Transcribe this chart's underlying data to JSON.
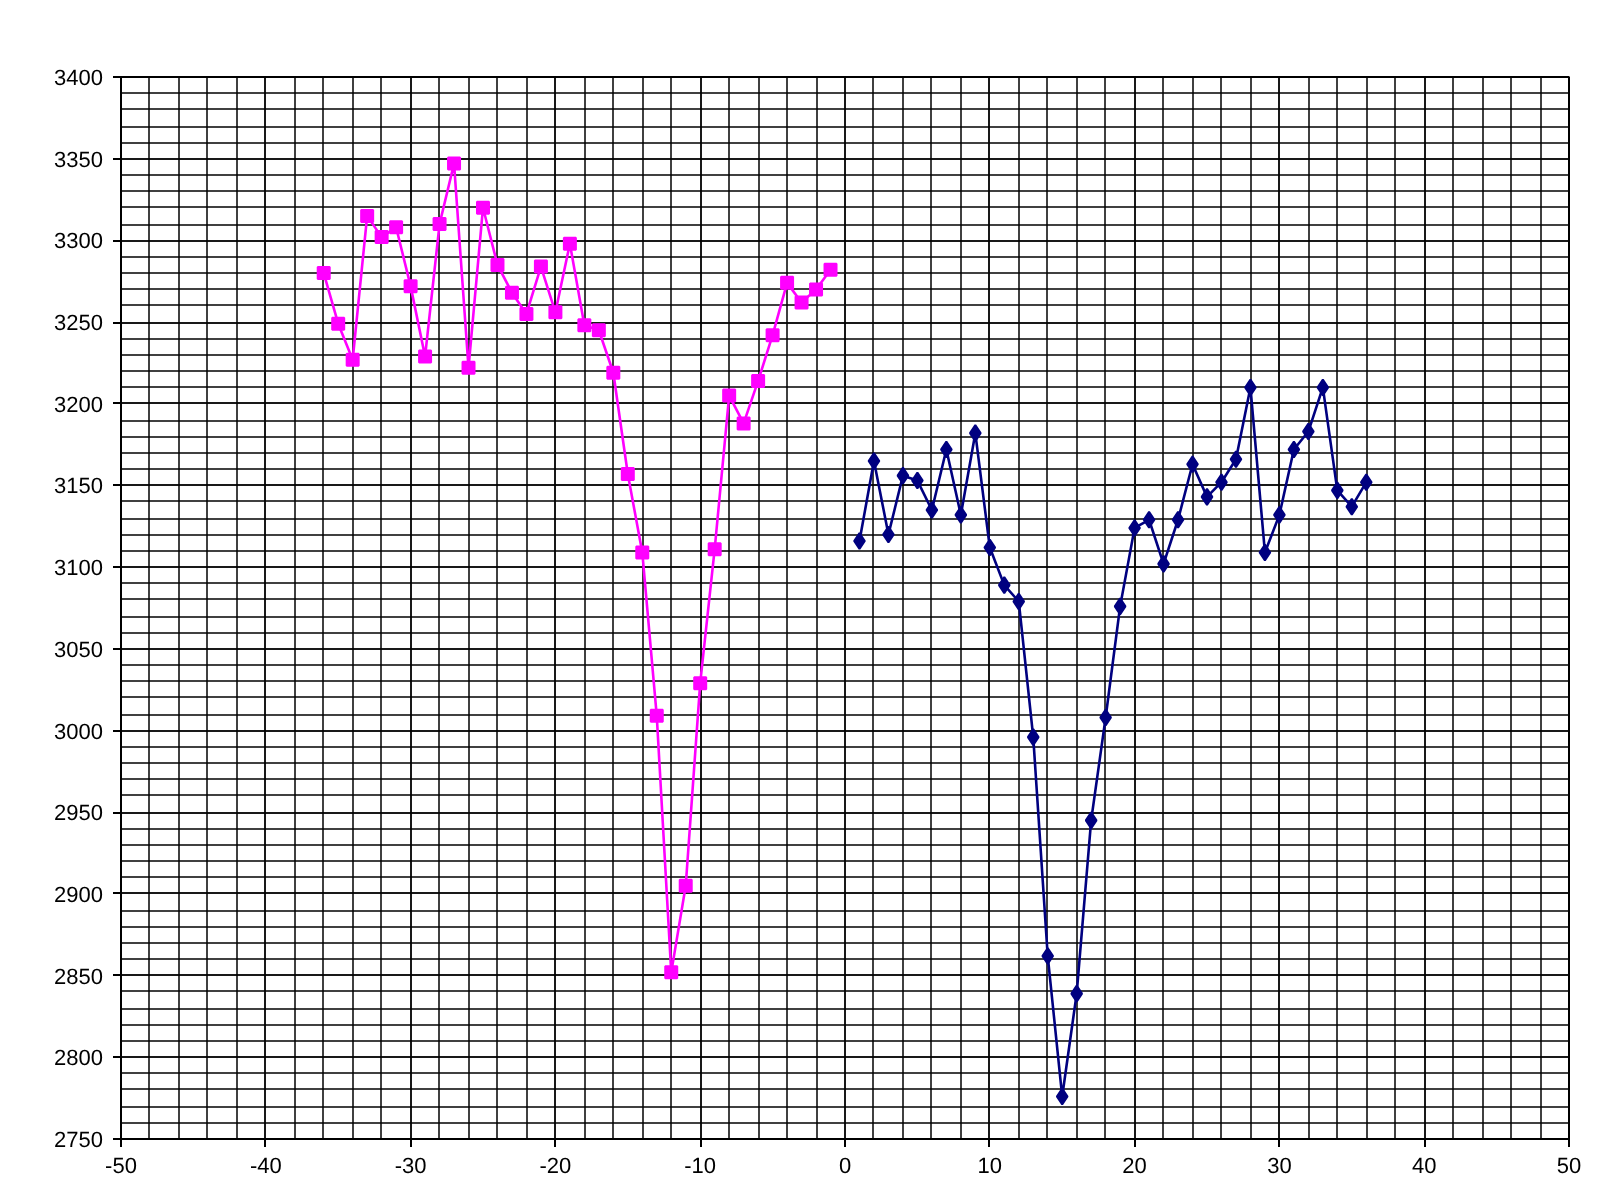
{
  "chart_data": {
    "type": "line",
    "xlim": [
      -50,
      50
    ],
    "ylim": [
      2750,
      3400
    ],
    "xticks": [
      -50,
      -40,
      -30,
      -20,
      -10,
      0,
      10,
      20,
      30,
      40,
      50
    ],
    "yticks": [
      2750,
      2800,
      2850,
      2900,
      2950,
      3000,
      3050,
      3100,
      3150,
      3200,
      3250,
      3300,
      3350,
      3400
    ],
    "grid": true,
    "series": [
      {
        "color": "#ff00ff",
        "marker": "square",
        "x": [
          -36,
          -35,
          -34,
          -33,
          -32,
          -31,
          -30,
          -29,
          -28,
          -27,
          -26,
          -25,
          -24,
          -23,
          -22,
          -21,
          -20,
          -19,
          -18,
          -17,
          -16,
          -15,
          -14,
          -13,
          -12,
          -11,
          -10,
          -9,
          -8,
          -7,
          -6,
          -5,
          -4,
          -3,
          -2,
          -1
        ],
        "values": [
          3280,
          3249,
          3227,
          3315,
          3302,
          3308,
          3272,
          3229,
          3310,
          3347,
          3222,
          3320,
          3285,
          3268,
          3255,
          3284,
          3256,
          3298,
          3248,
          3245,
          3219,
          3157,
          3109,
          3009,
          2852,
          2905,
          3029,
          3111,
          3205,
          3188,
          3214,
          3242,
          3274,
          3262,
          3270,
          3282
        ]
      },
      {
        "color": "#000080",
        "marker": "diamond",
        "x": [
          1,
          2,
          3,
          4,
          5,
          6,
          7,
          8,
          9,
          10,
          11,
          12,
          13,
          14,
          15,
          16,
          17,
          18,
          19,
          20,
          21,
          22,
          23,
          24,
          25,
          26,
          27,
          28,
          29,
          30,
          31,
          32,
          33,
          34,
          35,
          36
        ],
        "values": [
          3116,
          3165,
          3120,
          3156,
          3153,
          3135,
          3172,
          3132,
          3182,
          3112,
          3089,
          3079,
          2996,
          2862,
          2776,
          2839,
          2945,
          3008,
          3076,
          3124,
          3129,
          3102,
          3129,
          3163,
          3143,
          3152,
          3166,
          3210,
          3109,
          3132,
          3172,
          3183,
          3210,
          3147,
          3137,
          3152
        ]
      }
    ]
  }
}
